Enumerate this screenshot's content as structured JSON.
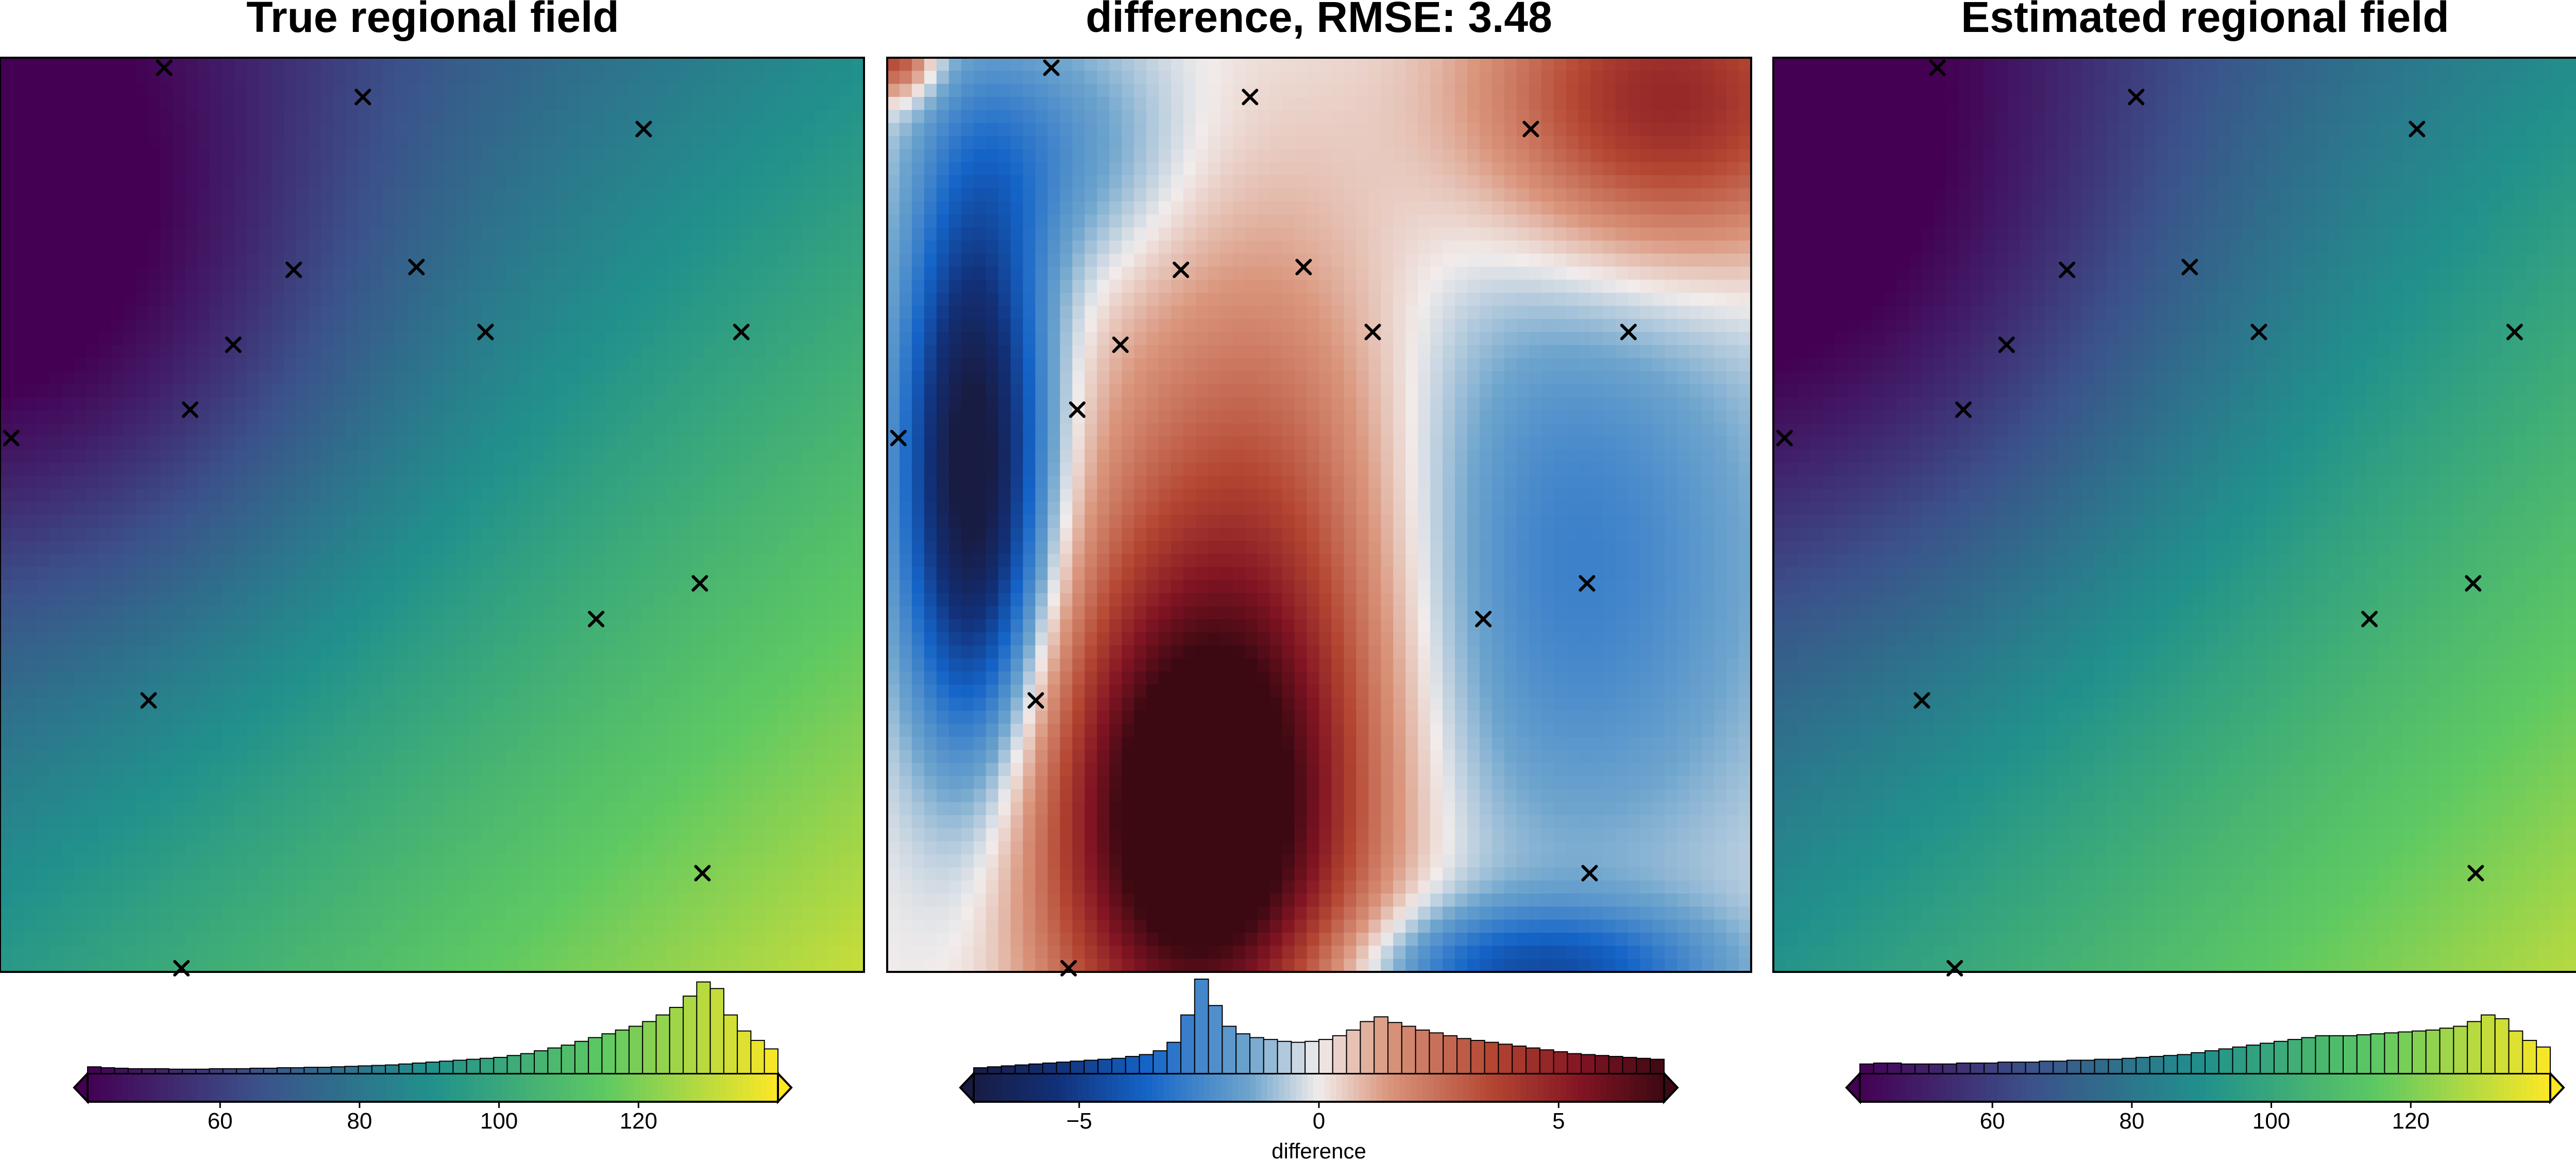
{
  "chart_data": [
    {
      "type": "heatmap",
      "title": "True regional field",
      "colormap": "viridis",
      "value_range": [
        41,
        140
      ],
      "field_model": {
        "base": 92,
        "x": 38,
        "y": 42,
        "well_center": [
          0.05,
          0.25
        ],
        "well_depth": 30,
        "well_width": 0.35
      },
      "markers": [
        [
          0.19,
          0.011
        ],
        [
          0.42,
          0.043
        ],
        [
          0.745,
          0.078
        ],
        [
          0.34,
          0.232
        ],
        [
          0.482,
          0.229
        ],
        [
          0.562,
          0.3
        ],
        [
          0.858,
          0.3
        ],
        [
          0.27,
          0.314
        ],
        [
          0.22,
          0.385
        ],
        [
          0.013,
          0.416
        ],
        [
          0.81,
          0.575
        ],
        [
          0.69,
          0.614
        ],
        [
          0.172,
          0.703
        ],
        [
          0.813,
          0.892
        ],
        [
          0.21,
          0.996
        ]
      ],
      "colorbar": {
        "ticks": [
          60,
          80,
          100,
          120
        ],
        "label": "",
        "extend": "both"
      },
      "histogram": [
        0.07,
        0.06,
        0.055,
        0.05,
        0.05,
        0.05,
        0.045,
        0.045,
        0.045,
        0.05,
        0.05,
        0.05,
        0.055,
        0.055,
        0.06,
        0.06,
        0.065,
        0.065,
        0.07,
        0.075,
        0.08,
        0.085,
        0.09,
        0.1,
        0.11,
        0.12,
        0.13,
        0.14,
        0.15,
        0.16,
        0.17,
        0.19,
        0.21,
        0.24,
        0.27,
        0.3,
        0.34,
        0.38,
        0.42,
        0.46,
        0.5,
        0.55,
        0.62,
        0.7,
        0.82,
        0.97,
        0.9,
        0.62,
        0.45,
        0.35,
        0.26
      ]
    },
    {
      "type": "heatmap",
      "title": "difference, RMSE: 3.48",
      "colormap": "balance",
      "value_range": [
        -7.2,
        7.2
      ],
      "field_model": {
        "blobs": [
          [
            0.36,
            0.85,
            8.5,
            0.12,
            0.18
          ],
          [
            0.45,
            0.55,
            4.0,
            0.15,
            0.25
          ],
          [
            0.9,
            0.05,
            5.0,
            0.15,
            0.12
          ],
          [
            0.1,
            0.45,
            -8.0,
            0.06,
            0.22
          ],
          [
            0.75,
            0.55,
            -3.0,
            0.2,
            0.25
          ],
          [
            0.2,
            0.1,
            -2.0,
            0.1,
            0.1
          ],
          [
            0.75,
            1.0,
            -4.0,
            0.15,
            0.05
          ],
          [
            0.01,
            0.0,
            4.0,
            0.03,
            0.03
          ]
        ]
      },
      "markers": [
        [
          0.19,
          0.011
        ],
        [
          0.42,
          0.043
        ],
        [
          0.745,
          0.078
        ],
        [
          0.34,
          0.232
        ],
        [
          0.482,
          0.229
        ],
        [
          0.562,
          0.3
        ],
        [
          0.858,
          0.3
        ],
        [
          0.27,
          0.314
        ],
        [
          0.22,
          0.385
        ],
        [
          0.013,
          0.416
        ],
        [
          0.81,
          0.575
        ],
        [
          0.69,
          0.614
        ],
        [
          0.172,
          0.703
        ],
        [
          0.813,
          0.892
        ],
        [
          0.21,
          0.996
        ]
      ],
      "colorbar": {
        "ticks": [
          -5,
          0,
          5
        ],
        "label": "difference",
        "extend": "both"
      },
      "histogram": [
        0.06,
        0.07,
        0.08,
        0.09,
        0.1,
        0.11,
        0.12,
        0.13,
        0.14,
        0.15,
        0.16,
        0.18,
        0.2,
        0.24,
        0.33,
        0.62,
        1.0,
        0.72,
        0.5,
        0.42,
        0.38,
        0.36,
        0.34,
        0.33,
        0.34,
        0.36,
        0.4,
        0.46,
        0.55,
        0.6,
        0.54,
        0.5,
        0.46,
        0.43,
        0.4,
        0.37,
        0.35,
        0.33,
        0.31,
        0.29,
        0.27,
        0.25,
        0.23,
        0.21,
        0.2,
        0.19,
        0.18,
        0.17,
        0.16,
        0.15
      ]
    },
    {
      "type": "heatmap",
      "title": "Estimated regional field",
      "colormap": "viridis",
      "value_range": [
        41,
        140
      ],
      "field_model": {
        "base": 92,
        "x": 40,
        "y": 40,
        "well_center": [
          0.05,
          0.2
        ],
        "well_depth": 28,
        "well_width": 0.4
      },
      "markers": [
        [
          0.19,
          0.011
        ],
        [
          0.42,
          0.043
        ],
        [
          0.745,
          0.078
        ],
        [
          0.34,
          0.232
        ],
        [
          0.482,
          0.229
        ],
        [
          0.562,
          0.3
        ],
        [
          0.858,
          0.3
        ],
        [
          0.27,
          0.314
        ],
        [
          0.22,
          0.385
        ],
        [
          0.013,
          0.416
        ],
        [
          0.81,
          0.575
        ],
        [
          0.69,
          0.614
        ],
        [
          0.172,
          0.703
        ],
        [
          0.813,
          0.892
        ],
        [
          0.21,
          0.996
        ]
      ],
      "colorbar": {
        "ticks": [
          60,
          80,
          100,
          120
        ],
        "label": "",
        "extend": "both"
      },
      "histogram": [
        0.1,
        0.11,
        0.11,
        0.1,
        0.1,
        0.1,
        0.1,
        0.11,
        0.11,
        0.11,
        0.12,
        0.12,
        0.12,
        0.13,
        0.13,
        0.14,
        0.14,
        0.15,
        0.15,
        0.16,
        0.17,
        0.18,
        0.19,
        0.2,
        0.22,
        0.24,
        0.26,
        0.28,
        0.3,
        0.32,
        0.34,
        0.36,
        0.38,
        0.4,
        0.4,
        0.4,
        0.41,
        0.42,
        0.43,
        0.44,
        0.45,
        0.46,
        0.48,
        0.5,
        0.55,
        0.62,
        0.58,
        0.45,
        0.35,
        0.28
      ]
    }
  ]
}
